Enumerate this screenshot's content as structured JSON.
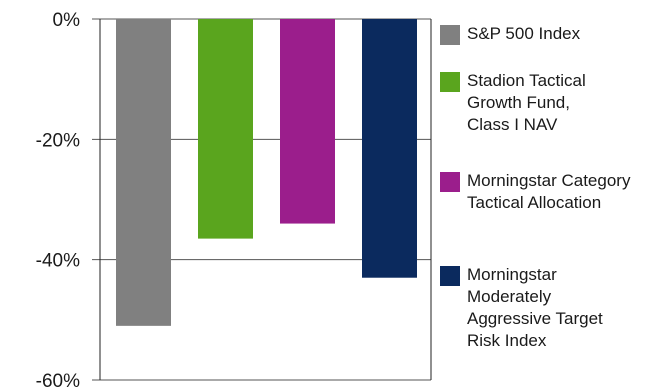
{
  "chart_data": {
    "type": "bar",
    "title": "",
    "xlabel": "",
    "ylabel": "",
    "ylim": [
      -60,
      0
    ],
    "y_ticks": [
      {
        "value": 0,
        "label": "0%"
      },
      {
        "value": -20,
        "label": "-20%"
      },
      {
        "value": -40,
        "label": "-40%"
      },
      {
        "value": -60,
        "label": "-60%"
      }
    ],
    "grid": true,
    "legend_position": "right",
    "series": [
      {
        "name": "S&P 500 Index",
        "value": -51,
        "color": "#808080"
      },
      {
        "name": "Stadion Tactical Growth Fund, Class I NAV",
        "value": -36.5,
        "color": "#5aa51e"
      },
      {
        "name": "Morningstar Category Tactical Allocation",
        "value": -34,
        "color": "#9b1e8c"
      },
      {
        "name": "Morningstar Moderately Aggressive Target Risk Index",
        "value": -43,
        "color": "#0b2a5e"
      }
    ]
  }
}
